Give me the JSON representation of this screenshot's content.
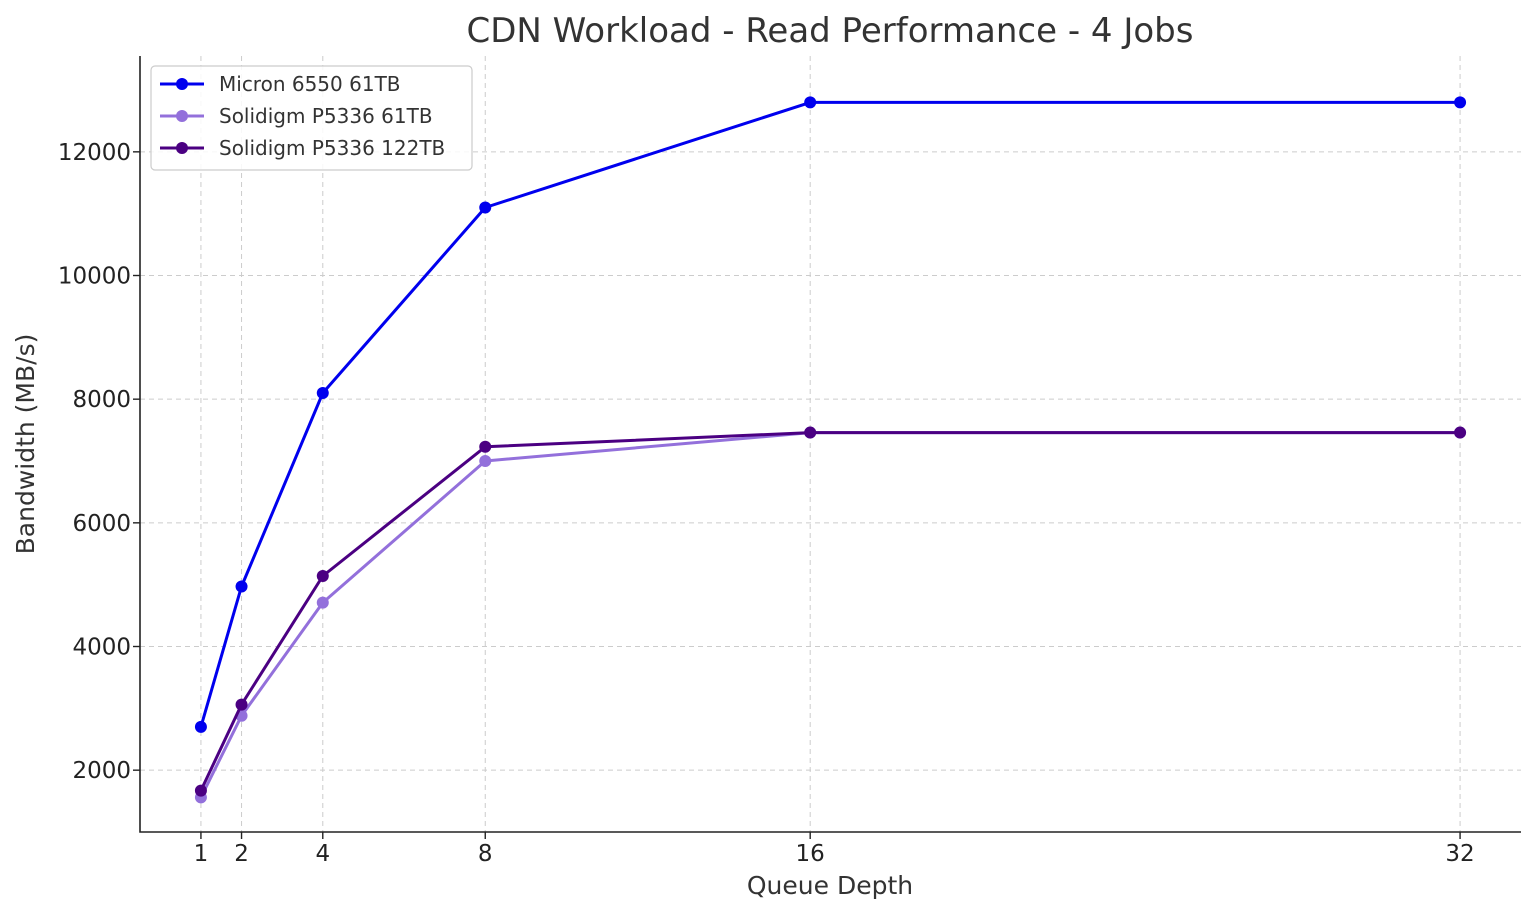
{
  "chart_data": {
    "type": "line",
    "title": "CDN Workload - Read Performance - 4 Jobs",
    "xlabel": "Queue Depth",
    "ylabel": "Bandwidth (MB/s)",
    "x": [
      1,
      2,
      4,
      8,
      16,
      32
    ],
    "x_ticks": [
      "1",
      "2",
      "4",
      "8",
      "16",
      "32"
    ],
    "y_ticks": [
      "2000",
      "4000",
      "6000",
      "8000",
      "10000",
      "12000"
    ],
    "xlim": [
      -0.5,
      33.5
    ],
    "ylim": [
      1000,
      13550
    ],
    "grid": true,
    "legend_position": "top-left",
    "series": [
      {
        "name": "Micron 6550 61TB",
        "color": "#0000ee",
        "values": [
          2700,
          4970,
          8100,
          11100,
          12800,
          12800
        ]
      },
      {
        "name": "Solidigm P5336 61TB",
        "color": "#9370db",
        "values": [
          1560,
          2880,
          4710,
          7000,
          7460,
          7460
        ]
      },
      {
        "name": "Solidigm P5336 122TB",
        "color": "#4b0082",
        "values": [
          1670,
          3060,
          5140,
          7230,
          7460,
          7460
        ]
      }
    ]
  }
}
